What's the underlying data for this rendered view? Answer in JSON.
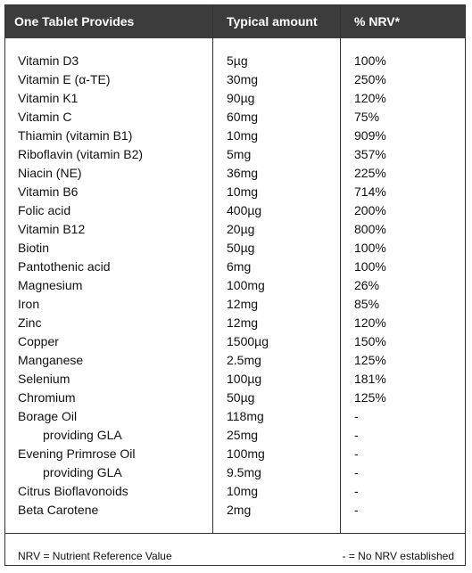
{
  "table": {
    "header": [
      "One Tablet Provides",
      "Typical amount",
      "% NRV*"
    ],
    "rows": [
      {
        "nutrient": "Vitamin D3",
        "amount": "5µg",
        "nrv": "100%"
      },
      {
        "nutrient": "Vitamin E  (α-TE)",
        "amount": "30mg",
        "nrv": "250%"
      },
      {
        "nutrient": "Vitamin K1",
        "amount": "90µg",
        "nrv": "120%"
      },
      {
        "nutrient": "Vitamin C",
        "amount": "60mg",
        "nrv": "75%"
      },
      {
        "nutrient": "Thiamin (vitamin B1)",
        "amount": "10mg",
        "nrv": "909%"
      },
      {
        "nutrient": "Riboflavin  (vitamin B2)",
        "amount": "5mg",
        "nrv": "357%"
      },
      {
        "nutrient": "Niacin (NE)",
        "amount": "36mg",
        "nrv": "225%"
      },
      {
        "nutrient": "Vitamin B6",
        "amount": "10mg",
        "nrv": "714%"
      },
      {
        "nutrient": "Folic acid",
        "amount": "400µg",
        "nrv": "200%"
      },
      {
        "nutrient": "Vitamin B12",
        "amount": "20µg",
        "nrv": "800%"
      },
      {
        "nutrient": "Biotin",
        "amount": "50µg",
        "nrv": "100%"
      },
      {
        "nutrient": "Pantothenic acid",
        "amount": "6mg",
        "nrv": "100%"
      },
      {
        "nutrient": "Magnesium",
        "amount": "100mg",
        "nrv": "26%"
      },
      {
        "nutrient": "Iron",
        "amount": "12mg",
        "nrv": "85%"
      },
      {
        "nutrient": "Zinc",
        "amount": "12mg",
        "nrv": "120%"
      },
      {
        "nutrient": "Copper",
        "amount": "1500µg",
        "nrv": "150%"
      },
      {
        "nutrient": "Manganese",
        "amount": "2.5mg",
        "nrv": "125%"
      },
      {
        "nutrient": "Selenium",
        "amount": "100µg",
        "nrv": "181%"
      },
      {
        "nutrient": "Chromium",
        "amount": "50µg",
        "nrv": "125%"
      },
      {
        "nutrient": "Borage Oil",
        "amount": "118mg",
        "nrv": "-"
      },
      {
        "nutrient": "providing GLA",
        "amount": "25mg",
        "nrv": "-",
        "indent": true
      },
      {
        "nutrient": "Evening Primrose Oil",
        "amount": "100mg",
        "nrv": "-"
      },
      {
        "nutrient": "providing GLA",
        "amount": "9.5mg",
        "nrv": "-",
        "indent": true
      },
      {
        "nutrient": "Citrus Bioflavonoids",
        "amount": "10mg",
        "nrv": "-"
      },
      {
        "nutrient": "Beta Carotene",
        "amount": "2mg",
        "nrv": "-"
      }
    ],
    "footer": {
      "left": "NRV = Nutrient  Reference Value",
      "right": "-  = No NRV established"
    }
  }
}
